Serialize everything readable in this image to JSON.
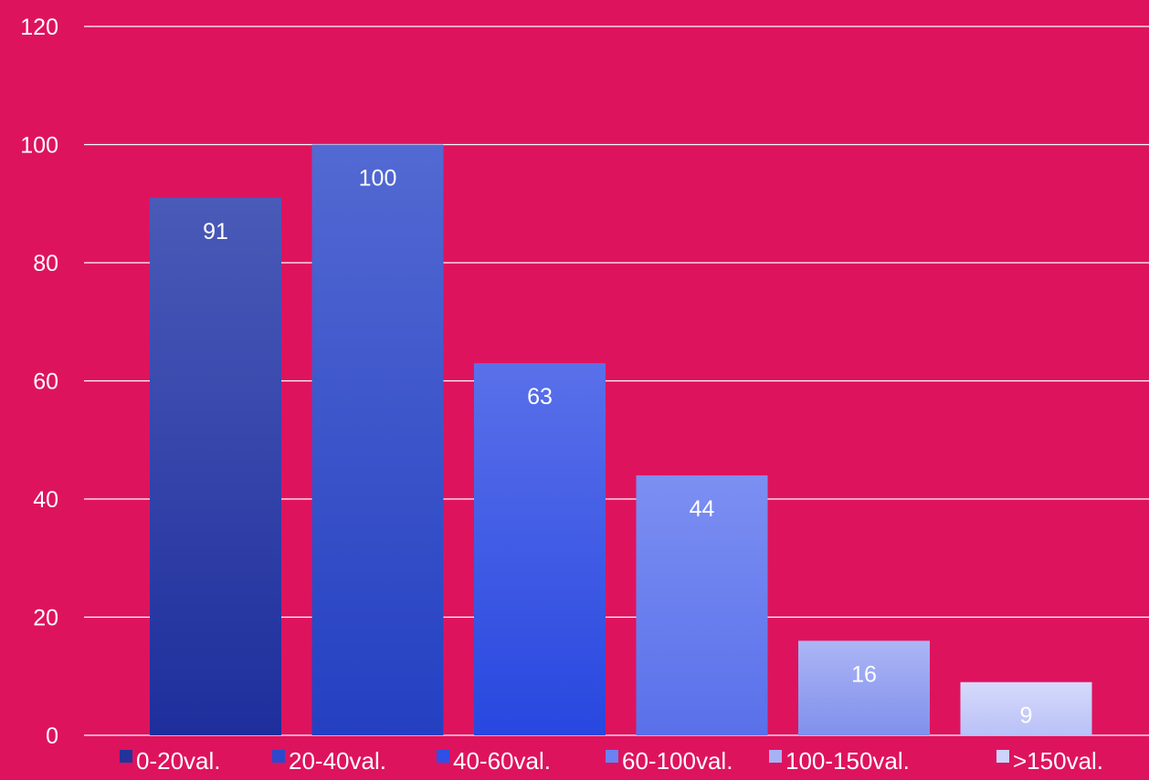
{
  "chart_data": {
    "type": "bar",
    "categories": [
      "0-20val.",
      "20-40val.",
      "40-60val.",
      "60-100val.",
      "100-150val.",
      ">150val."
    ],
    "values": [
      91,
      100,
      63,
      44,
      16,
      9
    ],
    "data_labels": [
      "91",
      "100",
      "63",
      "44",
      "16",
      "9"
    ],
    "ylim": [
      0,
      120
    ],
    "yticks": [
      0,
      20,
      40,
      60,
      80,
      100,
      120
    ],
    "grid": true,
    "legend_position": "bottom",
    "colors": {
      "background": "#DE135E",
      "gridline": "#FFFFFF",
      "text": "#FFFFFF",
      "bars": [
        [
          "#4A5AB8",
          "#1E2E9C"
        ],
        [
          "#5369D2",
          "#2440C2"
        ],
        [
          "#5A70EA",
          "#2747DF"
        ],
        [
          "#7C8FF2",
          "#5970EA"
        ],
        [
          "#ACB5F5",
          "#8090EC"
        ],
        [
          "#D6DAFB",
          "#B9C1F7"
        ]
      ],
      "legend_swatches": [
        "#243399",
        "#2C48CC",
        "#2F4FE5",
        "#6B82F2",
        "#A7B1F5",
        "#CDD3FA"
      ]
    }
  }
}
